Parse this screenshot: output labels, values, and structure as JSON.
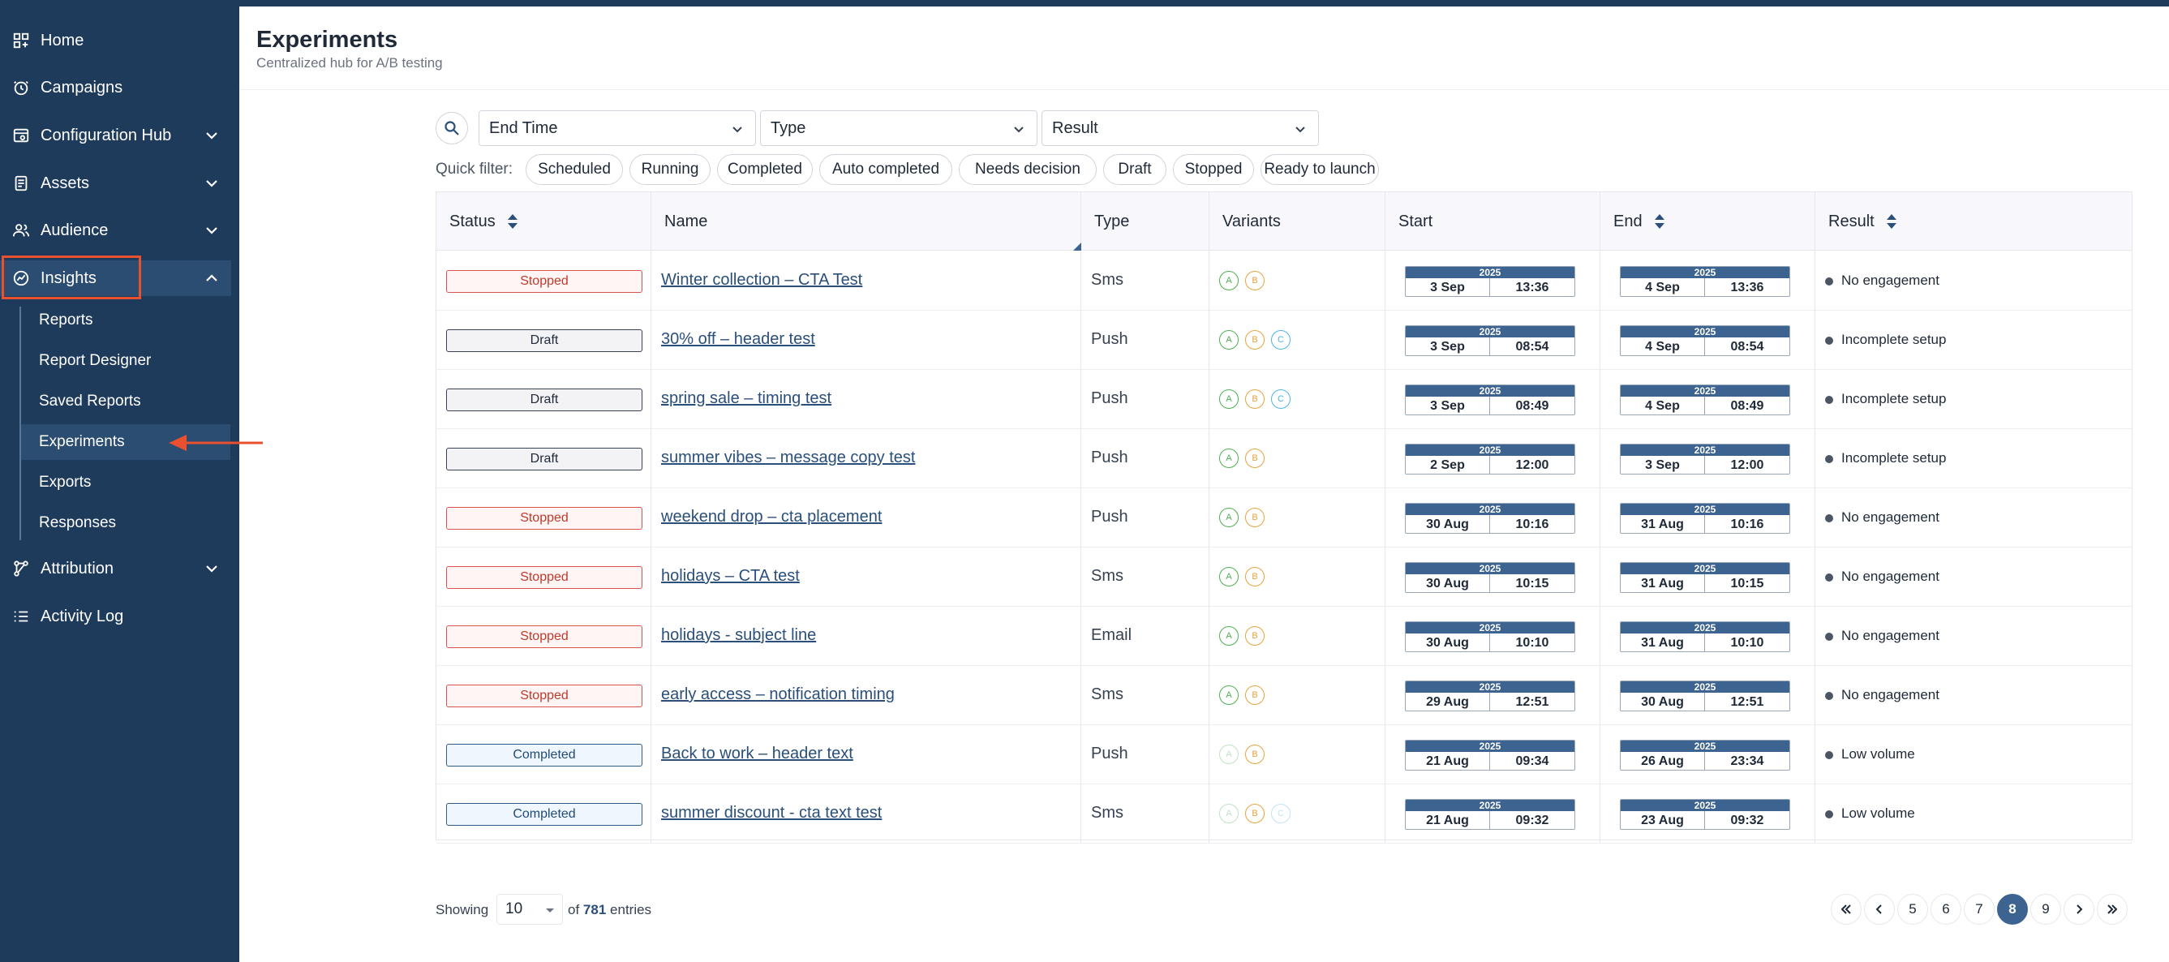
{
  "sidebar": {
    "items": [
      {
        "label": "Home",
        "icon": "grid-plus-icon"
      },
      {
        "label": "Campaigns",
        "icon": "clock-icon"
      },
      {
        "label": "Configuration Hub",
        "icon": "settings-window-icon"
      },
      {
        "label": "Assets",
        "icon": "document-icon"
      },
      {
        "label": "Audience",
        "icon": "users-icon"
      },
      {
        "label": "Insights",
        "icon": "chart-circle-icon"
      },
      {
        "label": "Attribution",
        "icon": "flow-icon"
      },
      {
        "label": "Activity Log",
        "icon": "list-icon"
      }
    ],
    "insights_sub": [
      {
        "label": "Reports"
      },
      {
        "label": "Report Designer"
      },
      {
        "label": "Saved Reports"
      },
      {
        "label": "Experiments"
      },
      {
        "label": "Exports"
      },
      {
        "label": "Responses"
      }
    ]
  },
  "header": {
    "title": "Experiments",
    "subtitle": "Centralized hub for A/B testing"
  },
  "filters": {
    "end_time": "End Time",
    "type": "Type",
    "result": "Result",
    "quick_filter_label": "Quick filter:",
    "chips": [
      "Scheduled",
      "Running",
      "Completed",
      "Auto completed",
      "Needs decision",
      "Draft",
      "Stopped",
      "Ready to launch"
    ]
  },
  "table": {
    "headers": {
      "status": "Status",
      "name": "Name",
      "type": "Type",
      "variants": "Variants",
      "start": "Start",
      "end": "End",
      "result": "Result"
    },
    "rows": [
      {
        "status": "Stopped",
        "name": "Winter collection – CTA Test",
        "type": "Sms",
        "variants": [
          "A",
          "B"
        ],
        "start": {
          "year": "2025",
          "day": "3 Sep",
          "time": "13:36"
        },
        "end": {
          "year": "2025",
          "day": "4 Sep",
          "time": "13:36"
        },
        "result": "No engagement"
      },
      {
        "status": "Draft",
        "name": "30% off – header test",
        "type": "Push",
        "variants": [
          "A",
          "B",
          "C"
        ],
        "start": {
          "year": "2025",
          "day": "3 Sep",
          "time": "08:54"
        },
        "end": {
          "year": "2025",
          "day": "4 Sep",
          "time": "08:54"
        },
        "result": "Incomplete setup"
      },
      {
        "status": "Draft",
        "name": "spring sale – timing test",
        "type": "Push",
        "variants": [
          "A",
          "B",
          "C"
        ],
        "start": {
          "year": "2025",
          "day": "3 Sep",
          "time": "08:49"
        },
        "end": {
          "year": "2025",
          "day": "4 Sep",
          "time": "08:49"
        },
        "result": "Incomplete setup"
      },
      {
        "status": "Draft",
        "name": "summer vibes – message copy test",
        "type": "Push",
        "variants": [
          "A",
          "B"
        ],
        "start": {
          "year": "2025",
          "day": "2 Sep",
          "time": "12:00"
        },
        "end": {
          "year": "2025",
          "day": "3 Sep",
          "time": "12:00"
        },
        "result": "Incomplete setup"
      },
      {
        "status": "Stopped",
        "name": "weekend drop – cta placement",
        "type": "Push",
        "variants": [
          "A",
          "B"
        ],
        "start": {
          "year": "2025",
          "day": "30 Aug",
          "time": "10:16"
        },
        "end": {
          "year": "2025",
          "day": "31 Aug",
          "time": "10:16"
        },
        "result": "No engagement"
      },
      {
        "status": "Stopped",
        "name": "holidays – CTA test",
        "type": "Sms",
        "variants": [
          "A",
          "B"
        ],
        "start": {
          "year": "2025",
          "day": "30 Aug",
          "time": "10:15"
        },
        "end": {
          "year": "2025",
          "day": "31 Aug",
          "time": "10:15"
        },
        "result": "No engagement"
      },
      {
        "status": "Stopped",
        "name": "holidays - subject line",
        "type": "Email",
        "variants": [
          "A",
          "B"
        ],
        "start": {
          "year": "2025",
          "day": "30 Aug",
          "time": "10:10"
        },
        "end": {
          "year": "2025",
          "day": "31 Aug",
          "time": "10:10"
        },
        "result": "No engagement"
      },
      {
        "status": "Stopped",
        "name": "early access – notification timing",
        "type": "Sms",
        "variants": [
          "A",
          "B"
        ],
        "start": {
          "year": "2025",
          "day": "29 Aug",
          "time": "12:51"
        },
        "end": {
          "year": "2025",
          "day": "30 Aug",
          "time": "12:51"
        },
        "result": "No engagement"
      },
      {
        "status": "Completed",
        "name": "Back to work – header text",
        "type": "Push",
        "variants": [
          "A",
          "B"
        ],
        "start": {
          "year": "2025",
          "day": "21 Aug",
          "time": "09:34"
        },
        "end": {
          "year": "2025",
          "day": "26 Aug",
          "time": "23:34"
        },
        "result": "Low volume"
      },
      {
        "status": "Completed",
        "name": "summer discount - cta text test",
        "type": "Sms",
        "variants": [
          "A",
          "B",
          "C"
        ],
        "start": {
          "year": "2025",
          "day": "21 Aug",
          "time": "09:32"
        },
        "end": {
          "year": "2025",
          "day": "23 Aug",
          "time": "09:32"
        },
        "result": "Low volume"
      }
    ]
  },
  "footer": {
    "showing_label": "Showing",
    "page_size": "10",
    "of_label": "of",
    "total": "781",
    "entries_label": "entries",
    "pages": [
      "5",
      "6",
      "7",
      "8",
      "9"
    ],
    "current_page": "8"
  },
  "colors": {
    "sidebar_bg": "#1f3b5c",
    "highlight": "#e8502f",
    "accent": "#3d6490"
  }
}
